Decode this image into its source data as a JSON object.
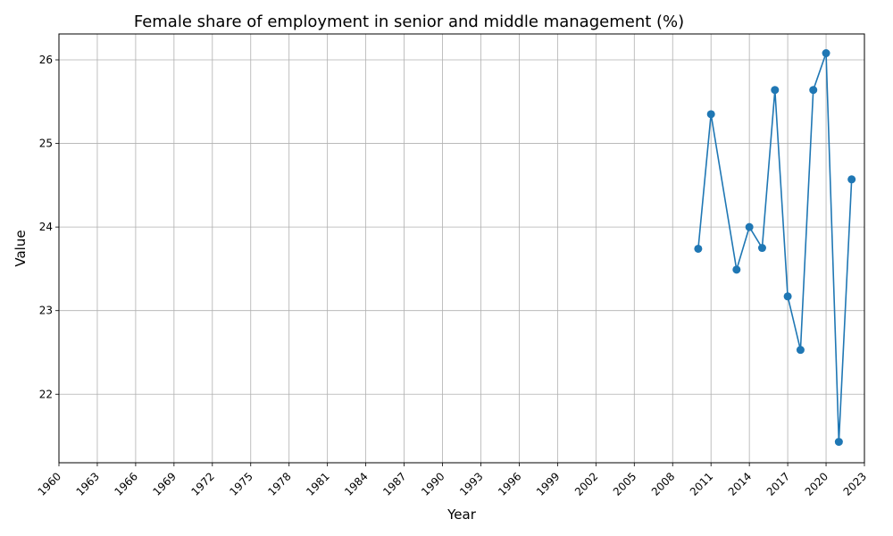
{
  "chart_data": {
    "type": "line",
    "title": "Female share of employment in senior and middle management (%)",
    "xlabel": "Year",
    "ylabel": "Value",
    "xlim": [
      1960,
      2023
    ],
    "ylim": [
      21.18,
      26.31
    ],
    "x_ticks": [
      1960,
      1963,
      1966,
      1969,
      1972,
      1975,
      1978,
      1981,
      1984,
      1987,
      1990,
      1993,
      1996,
      1999,
      2002,
      2005,
      2008,
      2011,
      2014,
      2017,
      2020,
      2023
    ],
    "y_ticks": [
      22,
      23,
      24,
      25,
      26
    ],
    "grid": true,
    "color": "#1f77b4",
    "series": [
      {
        "x": [
          2010,
          2011,
          2013,
          2014,
          2015,
          2016,
          2017,
          2018,
          2019,
          2020,
          2021,
          2022
        ],
        "y": [
          23.74,
          25.35,
          23.49,
          24.0,
          23.75,
          25.64,
          23.17,
          22.53,
          25.64,
          26.08,
          21.43,
          24.57
        ]
      }
    ]
  }
}
